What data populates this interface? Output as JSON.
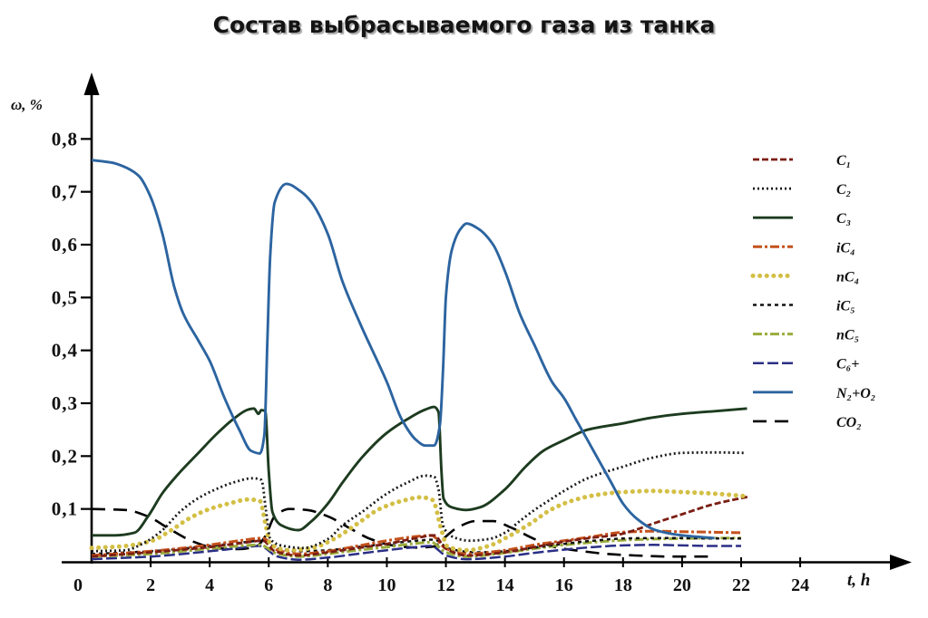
{
  "chart_data": {
    "type": "line",
    "title": "Состав выбрасываемого газа из танка",
    "xlabel": "t, h",
    "ylabel": "ω, %",
    "origin_label": "0",
    "xlim": [
      0,
      27.5
    ],
    "ylim": [
      0,
      0.9
    ],
    "grid": false,
    "legend_position": "right",
    "xticks": [
      {
        "value": 2,
        "label": "2"
      },
      {
        "value": 4,
        "label": "4"
      },
      {
        "value": 6,
        "label": "6"
      },
      {
        "value": 8,
        "label": "8"
      },
      {
        "value": 10,
        "label": "10"
      },
      {
        "value": 12,
        "label": "12"
      },
      {
        "value": 14,
        "label": "14"
      },
      {
        "value": 16,
        "label": "16"
      },
      {
        "value": 18,
        "label": "18"
      },
      {
        "value": 20,
        "label": "20"
      },
      {
        "value": 22,
        "label": "22"
      },
      {
        "value": 24,
        "label": "24"
      }
    ],
    "yticks": [
      {
        "value": 0.1,
        "label": "0,1"
      },
      {
        "value": 0.2,
        "label": "0,2"
      },
      {
        "value": 0.3,
        "label": "0,3"
      },
      {
        "value": 0.4,
        "label": "0,4"
      },
      {
        "value": 0.5,
        "label": "0,5"
      },
      {
        "value": 0.6,
        "label": "0,6"
      },
      {
        "value": 0.7,
        "label": "0,7"
      },
      {
        "value": 0.8,
        "label": "0,8"
      }
    ],
    "series": [
      {
        "name": "C₁",
        "color": "#7b1e14",
        "style": "dashed",
        "x": [
          0,
          2,
          4,
          5,
          5.8,
          6.2,
          7,
          8,
          9,
          10,
          11,
          11.6,
          12.0,
          12.7,
          14,
          15,
          16,
          17,
          17.7,
          18.4,
          19,
          20,
          21,
          22.3
        ],
        "y": [
          0.01,
          0.018,
          0.028,
          0.035,
          0.04,
          0.02,
          0.012,
          0.018,
          0.026,
          0.034,
          0.045,
          0.05,
          0.025,
          0.012,
          0.018,
          0.028,
          0.038,
          0.046,
          0.05,
          0.06,
          0.072,
          0.09,
          0.108,
          0.124
        ]
      },
      {
        "name": "C₂",
        "color": "#1a1a1a",
        "style": "dotted",
        "x": [
          0,
          1.15,
          1.75,
          2.4,
          3.0,
          3.6,
          4.2,
          4.8,
          5.45,
          5.75,
          5.9,
          6.05,
          6.5,
          7.15,
          8.0,
          8.5,
          9.15,
          10.0,
          10.7,
          11.3,
          11.6,
          11.75,
          11.9,
          12.2,
          12.8,
          13.45,
          14.0,
          14.5,
          15.0,
          15.6,
          16.0,
          16.8,
          18.0,
          19.0,
          20.0,
          21.1,
          22.1
        ],
        "y": [
          0.02,
          0.022,
          0.035,
          0.06,
          0.095,
          0.12,
          0.137,
          0.15,
          0.158,
          0.155,
          0.1,
          0.043,
          0.03,
          0.026,
          0.043,
          0.069,
          0.094,
          0.129,
          0.15,
          0.163,
          0.161,
          0.137,
          0.069,
          0.048,
          0.04,
          0.043,
          0.055,
          0.077,
          0.098,
          0.12,
          0.134,
          0.158,
          0.18,
          0.197,
          0.206,
          0.207,
          0.206
        ]
      },
      {
        "name": "C₃",
        "color": "#1d3b1f",
        "style": "solid",
        "x": [
          0,
          0.8,
          1.45,
          1.9,
          2.4,
          3.0,
          3.6,
          4.2,
          4.8,
          5.3,
          5.5,
          5.65,
          5.75,
          5.88,
          6.0,
          6.12,
          6.4,
          7.0,
          7.45,
          8.0,
          8.5,
          9.15,
          10.0,
          10.7,
          11.3,
          11.6,
          11.75,
          11.85,
          11.92,
          12.2,
          12.7,
          13.15,
          14.0,
          14.7,
          15.3,
          16.0,
          16.8,
          18.0,
          19.0,
          20.0,
          21.1,
          22.2
        ],
        "y": [
          0.05,
          0.05,
          0.055,
          0.085,
          0.13,
          0.17,
          0.205,
          0.24,
          0.27,
          0.288,
          0.29,
          0.28,
          0.287,
          0.285,
          0.17,
          0.095,
          0.07,
          0.06,
          0.077,
          0.11,
          0.15,
          0.197,
          0.244,
          0.27,
          0.288,
          0.293,
          0.283,
          0.17,
          0.12,
          0.103,
          0.098,
          0.103,
          0.137,
          0.18,
          0.21,
          0.23,
          0.25,
          0.262,
          0.273,
          0.28,
          0.285,
          0.29
        ]
      },
      {
        "name": "iC₄",
        "color": "#c4521c",
        "style": "dash-dot",
        "x": [
          0,
          2,
          4,
          5,
          5.8,
          6.3,
          7,
          8,
          9,
          10,
          11,
          11.5,
          12.0,
          12.7,
          14,
          15,
          16,
          17,
          18,
          19,
          20,
          21,
          22
        ],
        "y": [
          0.012,
          0.02,
          0.032,
          0.04,
          0.045,
          0.022,
          0.015,
          0.02,
          0.03,
          0.04,
          0.048,
          0.05,
          0.025,
          0.015,
          0.022,
          0.032,
          0.04,
          0.048,
          0.056,
          0.058,
          0.057,
          0.056,
          0.055
        ]
      },
      {
        "name": "nC₄",
        "color": "#d3bf45",
        "style": "circles",
        "x": [
          0,
          1.15,
          2.05,
          2.7,
          3.3,
          4.0,
          4.7,
          5.3,
          5.7,
          5.9,
          6.05,
          6.7,
          7.45,
          8.2,
          9.0,
          9.75,
          10.5,
          11.15,
          11.55,
          11.85,
          12.05,
          12.7,
          13.45,
          14.05,
          14.85,
          15.6,
          16.35,
          17.15,
          18.0,
          19.0,
          20.0,
          21.1,
          22.2
        ],
        "y": [
          0.026,
          0.03,
          0.04,
          0.06,
          0.082,
          0.1,
          0.111,
          0.118,
          0.115,
          0.069,
          0.034,
          0.022,
          0.026,
          0.043,
          0.072,
          0.1,
          0.115,
          0.122,
          0.117,
          0.06,
          0.029,
          0.022,
          0.03,
          0.046,
          0.072,
          0.1,
          0.117,
          0.127,
          0.132,
          0.134,
          0.132,
          0.129,
          0.124
        ]
      },
      {
        "name": "iC₅",
        "color": "#111111",
        "style": "short-dash",
        "x": [
          0,
          2,
          4,
          5,
          5.8,
          6.3,
          7,
          8,
          9,
          10,
          11,
          11.6,
          12.1,
          13,
          14,
          15,
          16,
          17,
          18,
          19,
          20,
          21,
          22
        ],
        "y": [
          0.015,
          0.02,
          0.03,
          0.036,
          0.04,
          0.025,
          0.02,
          0.022,
          0.028,
          0.034,
          0.04,
          0.042,
          0.025,
          0.018,
          0.02,
          0.027,
          0.034,
          0.04,
          0.044,
          0.045,
          0.045,
          0.044,
          0.044
        ]
      },
      {
        "name": "nC₅",
        "color": "#9aab3c",
        "style": "dash-dot",
        "x": [
          0,
          2,
          4,
          5,
          5.7,
          6.3,
          7,
          8,
          9,
          10,
          11,
          11.5,
          12.0,
          12.7,
          14,
          15,
          16,
          17,
          18,
          19,
          20,
          21,
          22
        ],
        "y": [
          0.01,
          0.015,
          0.025,
          0.03,
          0.032,
          0.015,
          0.01,
          0.015,
          0.022,
          0.028,
          0.035,
          0.037,
          0.018,
          0.01,
          0.017,
          0.025,
          0.032,
          0.037,
          0.041,
          0.043,
          0.044,
          0.045,
          0.045
        ]
      },
      {
        "name": "C₆+",
        "color": "#2b2f85",
        "style": "long-dash",
        "x": [
          0,
          2,
          4,
          5,
          5.7,
          6.3,
          7,
          8,
          9,
          10,
          11,
          11.5,
          12.0,
          12.7,
          14,
          15,
          16,
          17,
          18,
          19,
          20,
          21,
          22
        ],
        "y": [
          0.005,
          0.01,
          0.02,
          0.026,
          0.03,
          0.01,
          0.004,
          0.008,
          0.015,
          0.022,
          0.028,
          0.03,
          0.012,
          0.005,
          0.01,
          0.017,
          0.023,
          0.028,
          0.031,
          0.032,
          0.031,
          0.03,
          0.03
        ]
      },
      {
        "name": "N₂+O₂",
        "color": "#2c64a0",
        "style": "solid",
        "x": [
          0,
          0.7,
          1.2,
          1.6,
          2.0,
          2.4,
          2.8,
          3.1,
          3.6,
          4.0,
          4.5,
          5.0,
          5.4,
          5.7,
          5.85,
          5.95,
          6.05,
          6.2,
          6.6,
          7.1,
          7.45,
          8.0,
          8.5,
          9.1,
          10.0,
          10.5,
          11.0,
          11.3,
          11.6,
          11.8,
          11.9,
          12.0,
          12.2,
          12.5,
          12.7,
          13.1,
          13.6,
          14.0,
          14.5,
          15.0,
          15.6,
          16.0,
          16.4,
          16.8,
          17.1,
          17.6,
          18.0,
          18.5,
          19.1,
          20.0,
          21.1
        ],
        "y": [
          0.76,
          0.755,
          0.745,
          0.73,
          0.69,
          0.62,
          0.52,
          0.47,
          0.42,
          0.38,
          0.31,
          0.25,
          0.21,
          0.205,
          0.24,
          0.41,
          0.58,
          0.68,
          0.715,
          0.7,
          0.68,
          0.62,
          0.53,
          0.45,
          0.34,
          0.27,
          0.23,
          0.22,
          0.22,
          0.26,
          0.36,
          0.5,
          0.59,
          0.63,
          0.64,
          0.63,
          0.6,
          0.55,
          0.47,
          0.41,
          0.34,
          0.31,
          0.27,
          0.23,
          0.2,
          0.15,
          0.11,
          0.08,
          0.06,
          0.05,
          0.045
        ]
      },
      {
        "name": "CO₂",
        "color": "#000000",
        "style": "wide-dash",
        "x": [
          0,
          1.15,
          1.9,
          2.7,
          3.45,
          4.2,
          5.0,
          5.6,
          5.9,
          6.2,
          6.7,
          7.3,
          8.0,
          8.7,
          9.45,
          10.2,
          11.0,
          11.6,
          11.9,
          12.4,
          13.0,
          13.6,
          14.2,
          15.0,
          15.75,
          16.5,
          17.45,
          18.4,
          19.6,
          21.1
        ],
        "y": [
          0.1,
          0.098,
          0.086,
          0.06,
          0.038,
          0.026,
          0.024,
          0.03,
          0.05,
          0.086,
          0.1,
          0.098,
          0.086,
          0.065,
          0.043,
          0.031,
          0.027,
          0.029,
          0.043,
          0.065,
          0.077,
          0.077,
          0.065,
          0.043,
          0.027,
          0.021,
          0.015,
          0.012,
          0.01,
          0.01
        ]
      }
    ]
  }
}
